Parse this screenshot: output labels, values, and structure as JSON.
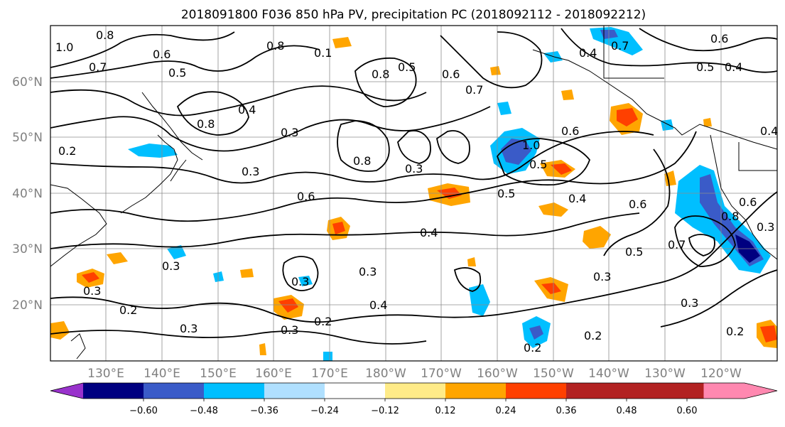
{
  "title": "2018091800 F036 850 hPa PV, precipitation PC (2018092112 - 2018092212)",
  "lat_labels": [
    "60°N",
    "50°N",
    "40°N",
    "30°N",
    "20°N"
  ],
  "lon_labels": [
    "130°E",
    "140°E",
    "150°E",
    "160°E",
    "170°E",
    "180°W",
    "170°W",
    "160°W",
    "150°W",
    "140°W",
    "130°W",
    "120°W"
  ],
  "colorbar": {
    "colors": [
      "#9932cc",
      "#000080",
      "#3a5bc8",
      "#00bfff",
      "#b0e0ff",
      "#ffffff",
      "#ffeb88",
      "#ffa500",
      "#ff4000",
      "#b22222",
      "#ff88b0"
    ],
    "tick_labels": [
      "−0.60",
      "−0.48",
      "−0.36",
      "−0.24",
      "−0.12",
      "0.12",
      "0.24",
      "0.36",
      "0.48",
      "0.60"
    ]
  },
  "contour_labels": [
    "0.8",
    "0.6",
    "1.0",
    "0.5",
    "0.7",
    "0.8",
    "0.4",
    "0.8",
    "0.3",
    "0.2",
    "0.3",
    "0.6",
    "0.5",
    "0.8",
    "0.3",
    "0.8",
    "0.7",
    "0.6",
    "0.4",
    "0.5",
    "0.4",
    "0.3",
    "0.4",
    "0.3",
    "0.2",
    "0.3",
    "0.2",
    "0.3",
    "0.2",
    "0.3",
    "0.5",
    "0.6",
    "0.3",
    "0.2",
    "0.6",
    "0.5",
    "0.3",
    "0.2",
    "0.4",
    "0.1",
    "0.6",
    "0.8",
    "0.3",
    "0.4",
    "0.7",
    "0.5",
    "0.4",
    "0.6",
    "0.3",
    "1.0",
    "0.7"
  ]
}
